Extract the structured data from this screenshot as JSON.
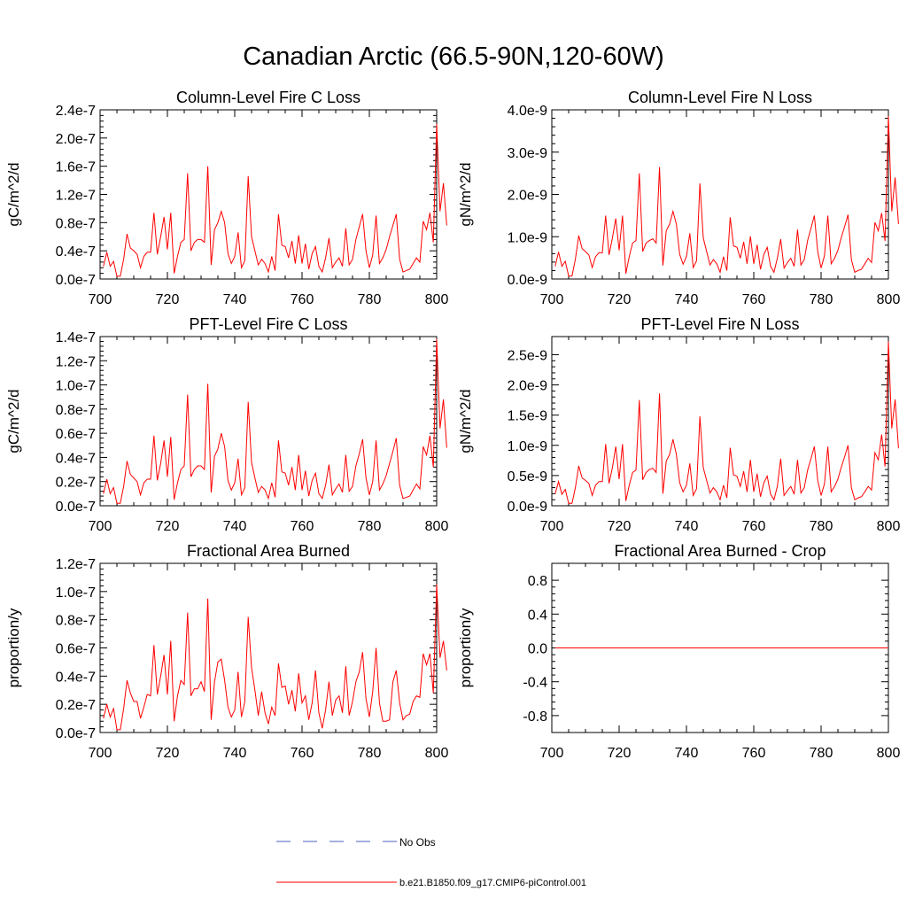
{
  "title": "Canadian Arctic (66.5-90N,120-60W)",
  "legend": [
    {
      "label": "No Obs",
      "color": "#4a5fbf",
      "dash": true
    },
    {
      "label": "b.e21.B1850.f09_g17.CMIP6-piControl.001",
      "color": "#ff0000",
      "dash": false
    }
  ],
  "chart_data": [
    {
      "type": "line",
      "title": "Column-Level Fire C Loss",
      "ylabel": "gC/m^2/d",
      "xlim": [
        700,
        800
      ],
      "ylim": [
        0,
        2.4e-07
      ],
      "xticks": [
        700,
        720,
        740,
        760,
        780,
        800
      ],
      "xtick_labels": [
        "700",
        "720",
        "740",
        "760",
        "780",
        "800"
      ],
      "yticks": [
        0,
        4e-08,
        8e-08,
        1.2e-07,
        1.6e-07,
        2e-07,
        2.4e-07
      ],
      "ytick_labels": [
        "0.0e-7",
        "0.4e-7",
        "0.8e-7",
        "1.2e-7",
        "1.6e-7",
        "2.0e-7",
        "2.4e-7"
      ],
      "x_start": 701,
      "series": [
        {
          "color": "#ff0000",
          "values": [
            1.8e-08,
            3.8e-08,
            1.8e-08,
            2.5e-08,
            4e-09,
            4e-09,
            2.8e-08,
            6.4e-08,
            4.4e-08,
            4e-08,
            3.5e-08,
            1.6e-08,
            3.2e-08,
            3.8e-08,
            3.8e-08,
            9.4e-08,
            3.5e-08,
            6e-08,
            8.8e-08,
            4.2e-08,
            9.4e-08,
            8e-09,
            3.2e-08,
            5.2e-08,
            5.6e-08,
            1.5e-07,
            4e-08,
            5.2e-08,
            5.6e-08,
            5.6e-08,
            5.2e-08,
            1.6e-07,
            2e-08,
            7e-08,
            8e-08,
            9.6e-08,
            8e-08,
            3.6e-08,
            2.2e-08,
            3.2e-08,
            6.6e-08,
            1.6e-08,
            2.6e-08,
            1.46e-07,
            6e-08,
            4e-08,
            2e-08,
            2.8e-08,
            2.2e-08,
            1e-08,
            3.2e-08,
            1.2e-08,
            9.2e-08,
            4.8e-08,
            4.6e-08,
            3e-08,
            5.4e-08,
            2.2e-08,
            6.2e-08,
            2.2e-08,
            5e-08,
            1.4e-08,
            3.6e-08,
            4.6e-08,
            1.8e-08,
            1e-08,
            3e-08,
            5.8e-08,
            1.6e-08,
            2.4e-08,
            3e-08,
            1.8e-08,
            7.2e-08,
            2e-08,
            2.8e-08,
            5.6e-08,
            7.4e-08,
            9.2e-08,
            4e-08,
            1.6e-08,
            3.4e-08,
            9e-08,
            2.2e-08,
            3e-08,
            4.2e-08,
            6e-08,
            7.6e-08,
            9.2e-08,
            2.8e-08,
            1e-08,
            1.2e-08,
            1.4e-08,
            2.2e-08,
            3e-08,
            2.4e-08,
            8.2e-08,
            7e-08,
            9.4e-08,
            5.2e-08,
            2.2e-07,
            9.6e-08,
            1.36e-07,
            7.6e-08
          ]
        }
      ]
    },
    {
      "type": "line",
      "title": "Column-Level Fire N Loss",
      "ylabel": "gN/m^2/d",
      "xlim": [
        700,
        800
      ],
      "ylim": [
        0,
        4e-09
      ],
      "xticks": [
        700,
        720,
        740,
        760,
        780,
        800
      ],
      "xtick_labels": [
        "700",
        "720",
        "740",
        "760",
        "780",
        "800"
      ],
      "yticks": [
        0,
        1e-09,
        2e-09,
        3e-09,
        4e-09
      ],
      "ytick_labels": [
        "0.0e-9",
        "1.0e-9",
        "2.0e-9",
        "3.0e-9",
        "4.0e-9"
      ],
      "x_start": 701,
      "series": [
        {
          "color": "#ff0000",
          "values": [
            3e-10,
            6.4e-10,
            3e-10,
            4.2e-10,
            7e-11,
            7e-11,
            4.7e-10,
            1.03e-09,
            7.2e-10,
            6.5e-10,
            5.7e-10,
            2.7e-10,
            5.3e-10,
            6.2e-10,
            6.2e-10,
            1.5e-09,
            5.7e-10,
            9.7e-10,
            1.43e-09,
            6.8e-10,
            1.5e-09,
            1.3e-10,
            5.3e-10,
            8.5e-10,
            9.1e-10,
            2.5e-09,
            6.5e-10,
            8.5e-10,
            9.1e-10,
            9.5e-10,
            8.5e-10,
            2.65e-09,
            3.2e-10,
            1.14e-09,
            1.3e-09,
            1.6e-09,
            1.3e-09,
            5.8e-10,
            3.5e-10,
            5.3e-10,
            1.08e-09,
            2.7e-10,
            4.3e-10,
            2.26e-09,
            9.7e-10,
            6.5e-10,
            3.3e-10,
            4.6e-10,
            3.6e-10,
            1.6e-10,
            5.3e-10,
            2e-10,
            1.46e-09,
            7.8e-10,
            7.5e-10,
            4.9e-10,
            8.8e-10,
            3.6e-10,
            1.01e-09,
            3.6e-10,
            8.1e-10,
            2.3e-10,
            5.8e-10,
            7.5e-10,
            3e-10,
            1.6e-10,
            4.9e-10,
            9.4e-10,
            2.6e-10,
            3.9e-10,
            4.9e-10,
            3e-10,
            1.17e-09,
            3.3e-10,
            4.6e-10,
            9.1e-10,
            1.2e-09,
            1.5e-09,
            6.5e-10,
            2.6e-10,
            5.5e-10,
            1.5e-09,
            3.6e-10,
            4.9e-10,
            6.8e-10,
            9.8e-10,
            1.24e-09,
            1.52e-09,
            4.6e-10,
            1.6e-10,
            2e-10,
            2.3e-10,
            3.6e-10,
            4.9e-10,
            3.9e-10,
            1.34e-09,
            1.14e-09,
            1.56e-09,
            9e-10,
            3.85e-09,
            1.6e-09,
            2.4e-09,
            1.3e-09
          ]
        }
      ]
    },
    {
      "type": "line",
      "title": "PFT-Level Fire C Loss",
      "ylabel": "gC/m^2/d",
      "xlim": [
        700,
        800
      ],
      "ylim": [
        0,
        1.4e-07
      ],
      "xticks": [
        700,
        720,
        740,
        760,
        780,
        800
      ],
      "xtick_labels": [
        "700",
        "720",
        "740",
        "760",
        "780",
        "800"
      ],
      "yticks": [
        0,
        2e-08,
        4e-08,
        6e-08,
        8e-08,
        1e-07,
        1.2e-07,
        1.4e-07
      ],
      "ytick_labels": [
        "0.0e-7",
        "0.2e-7",
        "0.4e-7",
        "0.6e-7",
        "0.8e-7",
        "1.0e-7",
        "1.2e-7",
        "1.4e-7"
      ],
      "x_start": 701,
      "series": [
        {
          "color": "#ff0000",
          "values": [
            1e-08,
            2.2e-08,
            1e-08,
            1.5e-08,
            2e-09,
            2e-09,
            1.6e-08,
            3.7e-08,
            2.6e-08,
            2.3e-08,
            2e-08,
            9e-09,
            1.9e-08,
            2.2e-08,
            2.2e-08,
            5.8e-08,
            2.1e-08,
            3.5e-08,
            5.4e-08,
            2.4e-08,
            5.7e-08,
            5e-09,
            1.9e-08,
            3e-08,
            3.3e-08,
            9.2e-08,
            2.4e-08,
            3e-08,
            3.3e-08,
            3.3e-08,
            3e-08,
            1.01e-07,
            1.1e-08,
            4.1e-08,
            4.7e-08,
            6e-08,
            4.9e-08,
            2.1e-08,
            1.3e-08,
            1.9e-08,
            3.9e-08,
            9e-09,
            1.5e-08,
            8.6e-08,
            3.6e-08,
            2.3e-08,
            1.1e-08,
            1.6e-08,
            1.3e-08,
            6e-09,
            1.9e-08,
            7e-09,
            5.4e-08,
            2.8e-08,
            2.7e-08,
            1.7e-08,
            3.2e-08,
            1.3e-08,
            4.2e-08,
            1.3e-08,
            2.9e-08,
            8e-09,
            2.1e-08,
            2.7e-08,
            1e-08,
            6e-09,
            1.7e-08,
            3.4e-08,
            9e-09,
            1.4e-08,
            1.8e-08,
            1.1e-08,
            4.2e-08,
            1.2e-08,
            1.6e-08,
            3.3e-08,
            4.3e-08,
            5.5e-08,
            2.3e-08,
            9e-09,
            2e-08,
            5.4e-08,
            1.3e-08,
            1.8e-08,
            2.5e-08,
            3.5e-08,
            4.5e-08,
            5.6e-08,
            1.7e-08,
            6e-09,
            7e-09,
            8e-09,
            1.3e-08,
            1.8e-08,
            1.4e-08,
            4.9e-08,
            4.2e-08,
            5.8e-08,
            3.2e-08,
            1.38e-07,
            6.4e-08,
            8.8e-08,
            4.8e-08
          ]
        }
      ]
    },
    {
      "type": "line",
      "title": "PFT-Level Fire N Loss",
      "ylabel": "gN/m^2/d",
      "xlim": [
        700,
        800
      ],
      "ylim": [
        0,
        2.8e-09
      ],
      "xticks": [
        700,
        720,
        740,
        760,
        780,
        800
      ],
      "xtick_labels": [
        "700",
        "720",
        "740",
        "760",
        "780",
        "800"
      ],
      "yticks": [
        0,
        5e-10,
        1e-09,
        1.5e-09,
        2e-09,
        2.5e-09
      ],
      "ytick_labels": [
        "0.0e-9",
        "0.5e-9",
        "1.0e-9",
        "1.5e-9",
        "2.0e-9",
        "2.5e-9"
      ],
      "x_start": 701,
      "series": [
        {
          "color": "#ff0000",
          "values": [
            2e-10,
            4e-10,
            1.9e-10,
            2.7e-10,
            4e-11,
            4e-11,
            3e-10,
            6.6e-10,
            4.6e-10,
            4.2e-10,
            3.7e-10,
            1.7e-10,
            3.4e-10,
            4e-10,
            4e-10,
            1.02e-09,
            3.7e-10,
            6.3e-10,
            9.8e-10,
            4.4e-10,
            1.02e-09,
            8e-11,
            3.4e-10,
            5.5e-10,
            5.9e-10,
            1.75e-09,
            4.3e-10,
            5.5e-10,
            6e-10,
            6.2e-10,
            5.5e-10,
            1.86e-09,
            2e-10,
            7.4e-10,
            8.5e-10,
            1.1e-09,
            8.5e-10,
            3.8e-10,
            2.3e-10,
            3.4e-10,
            7e-10,
            1.7e-10,
            2.8e-10,
            1.48e-09,
            6.3e-10,
            4.2e-10,
            2.1e-10,
            3e-10,
            2.3e-10,
            1e-10,
            3.4e-10,
            1.3e-10,
            9.6e-10,
            5.1e-10,
            4.9e-10,
            3.2e-10,
            5.7e-10,
            2.3e-10,
            7.6e-10,
            2.3e-10,
            5.3e-10,
            1.5e-10,
            3.8e-10,
            4.9e-10,
            1.9e-10,
            1e-10,
            3.2e-10,
            7.8e-10,
            1.7e-10,
            2.5e-10,
            3.2e-10,
            1.9e-10,
            7.6e-10,
            2.1e-10,
            3e-10,
            5.9e-10,
            7.8e-10,
            9.8e-10,
            4.2e-10,
            1.7e-10,
            3.6e-10,
            9.8e-10,
            2.3e-10,
            3.2e-10,
            4.4e-10,
            6.4e-10,
            8.1e-10,
            1e-09,
            3e-10,
            1e-10,
            1.3e-10,
            1.5e-10,
            2.3e-10,
            3.2e-10,
            2.6e-10,
            8.8e-10,
            7.6e-10,
            1.18e-09,
            6.5e-10,
            2.72e-09,
            1.28e-09,
            1.76e-09,
            9.5e-10
          ]
        }
      ]
    },
    {
      "type": "line",
      "title": "Fractional Area Burned",
      "ylabel": "proportion/y",
      "xlim": [
        700,
        800
      ],
      "ylim": [
        0,
        1.2e-07
      ],
      "xticks": [
        700,
        720,
        740,
        760,
        780,
        800
      ],
      "xtick_labels": [
        "700",
        "720",
        "740",
        "760",
        "780",
        "800"
      ],
      "yticks": [
        0,
        2e-08,
        4e-08,
        6e-08,
        8e-08,
        1e-07,
        1.2e-07
      ],
      "ytick_labels": [
        "0.0e-7",
        "0.2e-7",
        "0.4e-7",
        "0.6e-7",
        "0.8e-7",
        "1.0e-7",
        "1.2e-7"
      ],
      "x_start": 701,
      "series": [
        {
          "color": "#ff0000",
          "values": [
            1e-08,
            2e-08,
            1.1e-08,
            1.7e-08,
            2e-09,
            2e-09,
            1.7e-08,
            3.7e-08,
            2.8e-08,
            2.2e-08,
            2.2e-08,
            1e-08,
            1.8e-08,
            2.7e-08,
            2.6e-08,
            6.2e-08,
            2.7e-08,
            4e-08,
            5.5e-08,
            2.7e-08,
            6.5e-08,
            8e-09,
            2.6e-08,
            3.7e-08,
            3.4e-08,
            8.5e-08,
            2.6e-08,
            3.1e-08,
            3.1e-08,
            3.6e-08,
            2.9e-08,
            9.5e-08,
            9e-09,
            3.6e-08,
            5e-08,
            5.2e-08,
            3.7e-08,
            1.8e-08,
            1.1e-08,
            1.6e-08,
            4.3e-08,
            1.1e-08,
            2.2e-08,
            8.2e-08,
            4.6e-08,
            3e-08,
            1.2e-08,
            2.9e-08,
            1.4e-08,
            6e-09,
            1.8e-08,
            1.2e-08,
            4.9e-08,
            3.2e-08,
            3.3e-08,
            2e-08,
            3e-08,
            1.5e-08,
            4.2e-08,
            2.1e-08,
            2.6e-08,
            9e-09,
            2.1e-08,
            4.4e-08,
            1.4e-08,
            3e-09,
            1.6e-08,
            3.6e-08,
            1.2e-08,
            2.3e-08,
            2.6e-08,
            1.4e-08,
            4.7e-08,
            1.2e-08,
            2.2e-08,
            3.6e-08,
            4.3e-08,
            5.7e-08,
            2.4e-08,
            1.1e-08,
            2.9e-08,
            6e-08,
            2.1e-08,
            8e-09,
            8e-09,
            9e-09,
            3.6e-08,
            4.4e-08,
            2.1e-08,
            9e-09,
            1.2e-08,
            1.3e-08,
            2.2e-08,
            2.6e-08,
            2.5e-08,
            5.6e-08,
            4.8e-08,
            5.6e-08,
            2.8e-08,
            1.05e-07,
            5.3e-08,
            6.5e-08,
            4.4e-08
          ]
        }
      ]
    },
    {
      "type": "line",
      "title": "Fractional Area Burned - Crop",
      "ylabel": "proportion/y",
      "xlim": [
        700,
        800
      ],
      "ylim": [
        -1.0,
        1.0
      ],
      "xticks": [
        700,
        720,
        740,
        760,
        780,
        800
      ],
      "xtick_labels": [
        "700",
        "720",
        "740",
        "760",
        "780",
        "800"
      ],
      "yticks": [
        -0.8,
        -0.4,
        0.0,
        0.4,
        0.8
      ],
      "ytick_labels": [
        "-0.8",
        "-0.4",
        "0.0",
        "0.4",
        "0.8"
      ],
      "x_start": 701,
      "series": [
        {
          "color": "#ff0000",
          "constant": 0.0
        }
      ]
    }
  ]
}
